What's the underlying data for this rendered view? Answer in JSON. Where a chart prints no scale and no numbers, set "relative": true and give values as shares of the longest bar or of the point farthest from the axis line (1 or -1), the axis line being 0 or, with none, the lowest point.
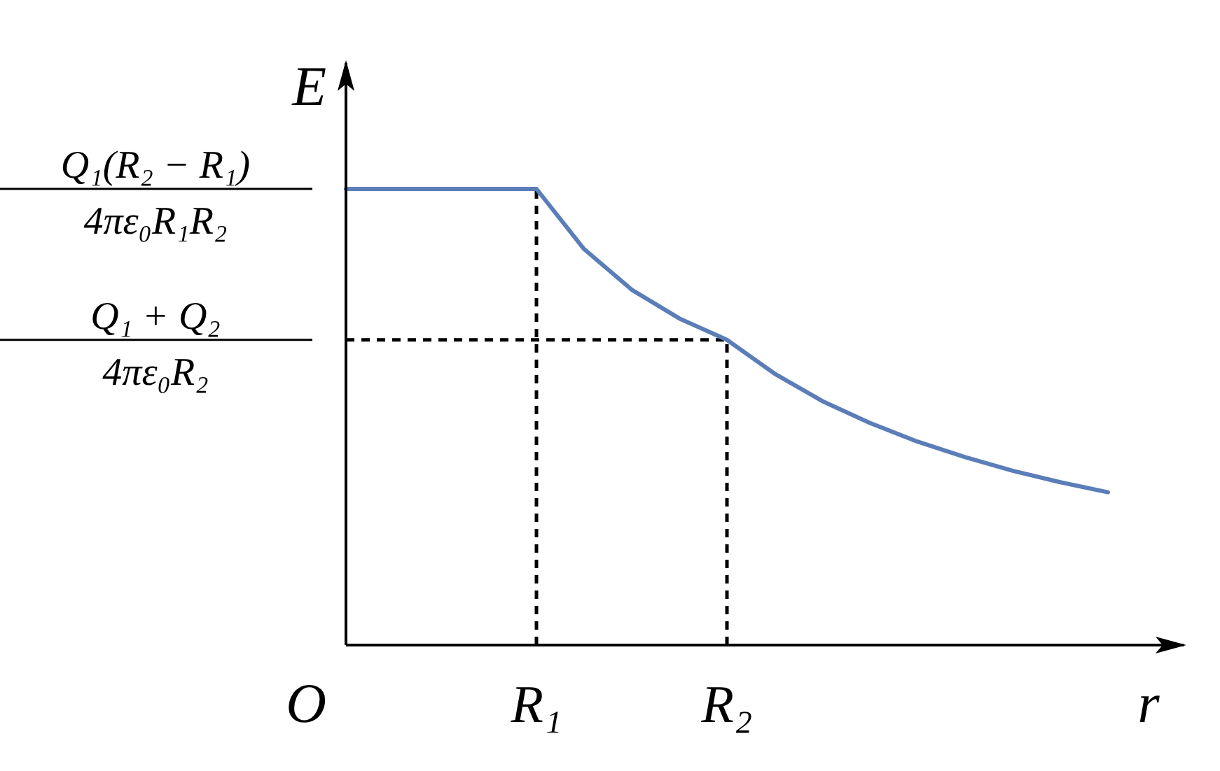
{
  "chart_data": {
    "type": "line",
    "xlabel": "r",
    "ylabel": "E",
    "relative": true,
    "categories": [
      null,
      null,
      null,
      null,
      "R₁",
      null,
      null,
      null,
      "R₂",
      null,
      null,
      null,
      null,
      null,
      null,
      null,
      null
    ],
    "series": [
      {
        "color": "#5b7db8",
        "values": [
          1,
          1,
          1,
          1,
          1,
          0.868,
          0.779,
          0.716,
          0.669,
          0.595,
          0.535,
          0.487,
          0.446,
          0.412,
          0.382,
          0.357,
          0.335
        ]
      }
    ],
    "ref_lines": [
      {
        "axis": "x",
        "value": "R₁",
        "line_style": "dashed",
        "color": "#000000"
      },
      {
        "axis": "x",
        "value": "R₂",
        "line_style": "dashed",
        "color": "#000000"
      },
      {
        "axis": "y",
        "value": 0.669,
        "line_style": "dashed",
        "color": "#000000"
      }
    ],
    "annotations": [
      "Q₁(R₂ − R₁)",
      "4πε₀R₁R₂",
      "Q₁ + Q₂",
      "4πε₀R₂",
      "O"
    ],
    "marker": "none",
    "line_style": "solid"
  }
}
